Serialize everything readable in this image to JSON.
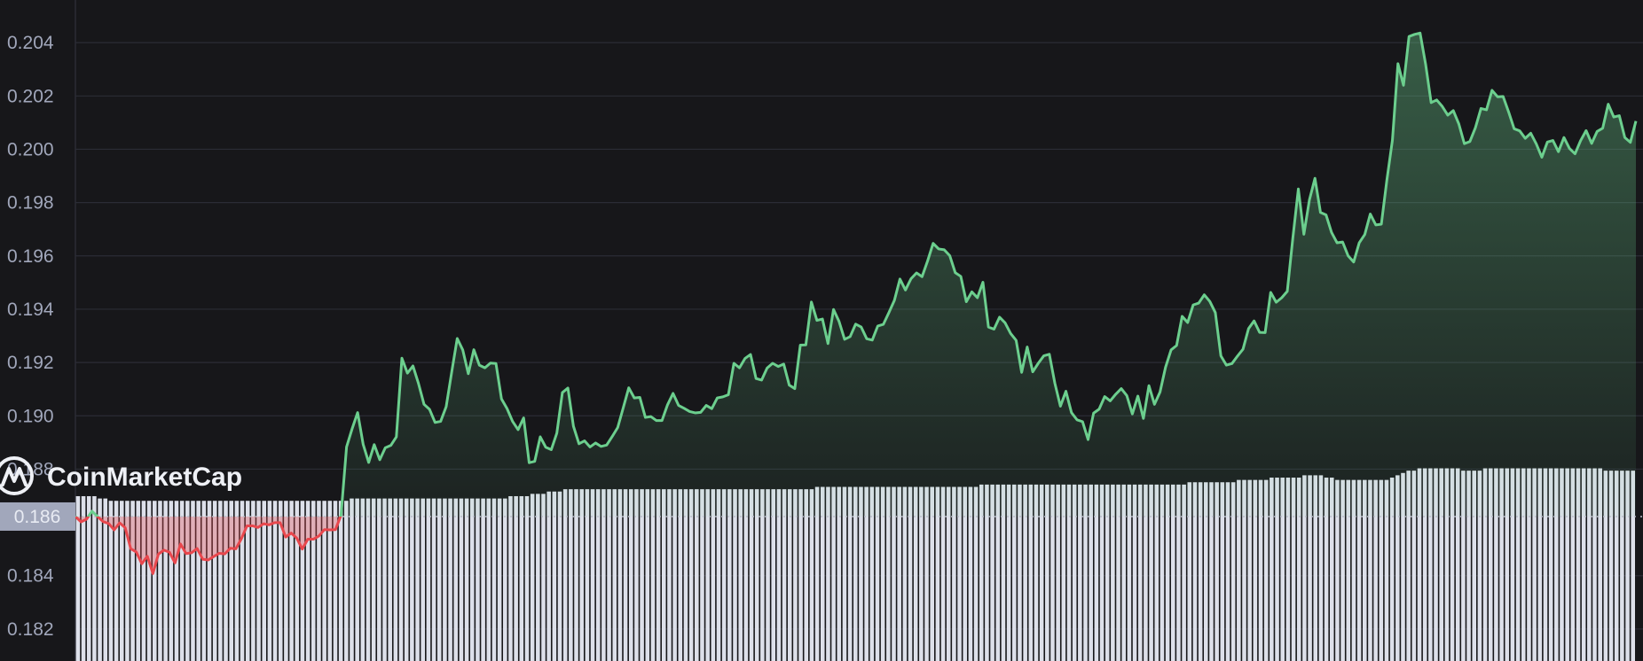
{
  "chart_data": {
    "type": "line",
    "y_ticks": [
      "0.182",
      "0.184",
      "0.186",
      "0.188",
      "0.190",
      "0.192",
      "0.194",
      "0.196",
      "0.198",
      "0.200",
      "0.202",
      "0.204"
    ],
    "ylim": [
      0.1808,
      0.2056
    ],
    "grid": true,
    "reference_price": 0.18622,
    "reference_label": "0.186",
    "watermark": "CoinMarketCap",
    "colors": {
      "background": "#17171a",
      "grid": "#2b2c35",
      "up": "#6ccf8e",
      "down": "#e8474d",
      "volume": "#dde0ea",
      "label_box": "#a1a7bb"
    },
    "price": [
      0.18622,
      0.18602,
      0.18612,
      0.18642,
      0.18622,
      0.18603,
      0.18596,
      0.18572,
      0.18598,
      0.1858,
      0.18501,
      0.18489,
      0.18445,
      0.18473,
      0.18408,
      0.18481,
      0.18496,
      0.18488,
      0.18448,
      0.18519,
      0.18483,
      0.18486,
      0.18502,
      0.18462,
      0.18459,
      0.18472,
      0.18484,
      0.18482,
      0.18503,
      0.18501,
      0.18539,
      0.18587,
      0.18587,
      0.18581,
      0.18595,
      0.18591,
      0.18599,
      0.18599,
      0.18545,
      0.1856,
      0.18541,
      0.185,
      0.18537,
      0.18537,
      0.18549,
      0.18573,
      0.18572,
      0.18573,
      0.18627,
      0.18883,
      0.18951,
      0.19012,
      0.18893,
      0.18825,
      0.18892,
      0.18835,
      0.1888,
      0.18889,
      0.18921,
      0.19216,
      0.1916,
      0.19187,
      0.19121,
      0.19043,
      0.19024,
      0.18975,
      0.18979,
      0.19034,
      0.19164,
      0.1929,
      0.19247,
      0.19158,
      0.19248,
      0.1919,
      0.1918,
      0.19198,
      0.19196,
      0.19063,
      0.19027,
      0.18979,
      0.18948,
      0.18992,
      0.18824,
      0.18829,
      0.18921,
      0.18882,
      0.18873,
      0.18935,
      0.19087,
      0.19104,
      0.18961,
      0.18895,
      0.18906,
      0.18883,
      0.18898,
      0.18885,
      0.1889,
      0.18922,
      0.18956,
      0.1903,
      0.19105,
      0.19067,
      0.19069,
      0.18994,
      0.18997,
      0.18982,
      0.18982,
      0.19041,
      0.19084,
      0.19039,
      0.19028,
      0.19016,
      0.19011,
      0.19013,
      0.19039,
      0.19027,
      0.19067,
      0.19071,
      0.19079,
      0.19197,
      0.1918,
      0.19215,
      0.1923,
      0.1914,
      0.19134,
      0.19179,
      0.19197,
      0.19185,
      0.19194,
      0.19115,
      0.19102,
      0.19265,
      0.19266,
      0.19427,
      0.19358,
      0.19363,
      0.19271,
      0.19399,
      0.19354,
      0.19287,
      0.19297,
      0.19344,
      0.19333,
      0.19289,
      0.19284,
      0.19337,
      0.19343,
      0.19387,
      0.19433,
      0.19513,
      0.19472,
      0.19514,
      0.19536,
      0.19522,
      0.19581,
      0.19647,
      0.19626,
      0.19623,
      0.19601,
      0.19537,
      0.19523,
      0.19428,
      0.19465,
      0.19443,
      0.19501,
      0.19333,
      0.19325,
      0.1937,
      0.19349,
      0.19309,
      0.19283,
      0.19163,
      0.19258,
      0.19165,
      0.19197,
      0.19225,
      0.19231,
      0.19122,
      0.19036,
      0.19092,
      0.19012,
      0.18985,
      0.18978,
      0.18911,
      0.1901,
      0.19025,
      0.19072,
      0.19056,
      0.19081,
      0.19102,
      0.19076,
      0.19007,
      0.19074,
      0.1899,
      0.19113,
      0.19043,
      0.19089,
      0.19182,
      0.19247,
      0.19264,
      0.19373,
      0.1935,
      0.19416,
      0.19423,
      0.19454,
      0.19429,
      0.19387,
      0.19225,
      0.1919,
      0.19196,
      0.19224,
      0.1925,
      0.19327,
      0.19356,
      0.19313,
      0.19312,
      0.19463,
      0.19426,
      0.19443,
      0.19467,
      0.19666,
      0.19851,
      0.19681,
      0.1981,
      0.19891,
      0.19763,
      0.19754,
      0.19688,
      0.19649,
      0.19652,
      0.196,
      0.19577,
      0.19649,
      0.1968,
      0.19757,
      0.19716,
      0.19719,
      0.19885,
      0.20034,
      0.20321,
      0.2024,
      0.20423,
      0.20431,
      0.20436,
      0.20319,
      0.20175,
      0.20185,
      0.20161,
      0.20128,
      0.20145,
      0.20095,
      0.20021,
      0.20029,
      0.20081,
      0.20153,
      0.20148,
      0.20221,
      0.20197,
      0.20198,
      0.2014,
      0.20077,
      0.20069,
      0.20041,
      0.2006,
      0.2002,
      0.1997,
      0.20027,
      0.20033,
      0.19991,
      0.20044,
      0.20003,
      0.19983,
      0.20032,
      0.2007,
      0.20022,
      0.20067,
      0.20079,
      0.20169,
      0.20121,
      0.20126,
      0.20044,
      0.20026,
      0.20106
    ],
    "volume": [
      0.71,
      0.71,
      0.71,
      0.71,
      0.7,
      0.7,
      0.69,
      0.69,
      0.69,
      0.69,
      0.69,
      0.69,
      0.69,
      0.69,
      0.69,
      0.69,
      0.69,
      0.69,
      0.69,
      0.69,
      0.69,
      0.69,
      0.69,
      0.69,
      0.69,
      0.69,
      0.69,
      0.69,
      0.69,
      0.69,
      0.69,
      0.69,
      0.69,
      0.69,
      0.69,
      0.69,
      0.69,
      0.69,
      0.69,
      0.69,
      0.69,
      0.69,
      0.69,
      0.69,
      0.69,
      0.69,
      0.69,
      0.69,
      0.69,
      0.69,
      0.7,
      0.7,
      0.7,
      0.7,
      0.7,
      0.7,
      0.7,
      0.7,
      0.7,
      0.7,
      0.7,
      0.7,
      0.7,
      0.7,
      0.7,
      0.7,
      0.7,
      0.7,
      0.7,
      0.7,
      0.7,
      0.7,
      0.7,
      0.7,
      0.7,
      0.7,
      0.7,
      0.7,
      0.7,
      0.71,
      0.71,
      0.71,
      0.71,
      0.72,
      0.72,
      0.72,
      0.73,
      0.73,
      0.73,
      0.74,
      0.74,
      0.74,
      0.74,
      0.74,
      0.74,
      0.74,
      0.74,
      0.74,
      0.74,
      0.74,
      0.74,
      0.74,
      0.74,
      0.74,
      0.74,
      0.74,
      0.74,
      0.74,
      0.74,
      0.74,
      0.74,
      0.74,
      0.74,
      0.74,
      0.74,
      0.74,
      0.74,
      0.74,
      0.74,
      0.74,
      0.74,
      0.74,
      0.74,
      0.74,
      0.74,
      0.74,
      0.74,
      0.74,
      0.74,
      0.74,
      0.74,
      0.74,
      0.74,
      0.74,
      0.74,
      0.75,
      0.75,
      0.75,
      0.75,
      0.75,
      0.75,
      0.75,
      0.75,
      0.75,
      0.75,
      0.75,
      0.75,
      0.75,
      0.75,
      0.75,
      0.75,
      0.75,
      0.75,
      0.75,
      0.75,
      0.75,
      0.75,
      0.75,
      0.75,
      0.75,
      0.75,
      0.75,
      0.75,
      0.75,
      0.75,
      0.76,
      0.76,
      0.76,
      0.76,
      0.76,
      0.76,
      0.76,
      0.76,
      0.76,
      0.76,
      0.76,
      0.76,
      0.76,
      0.76,
      0.76,
      0.76,
      0.76,
      0.76,
      0.76,
      0.76,
      0.76,
      0.76,
      0.76,
      0.76,
      0.76,
      0.76,
      0.76,
      0.76,
      0.76,
      0.76,
      0.76,
      0.76,
      0.76,
      0.76,
      0.76,
      0.76,
      0.76,
      0.76,
      0.77,
      0.77,
      0.77,
      0.77,
      0.77,
      0.77,
      0.77,
      0.77,
      0.77,
      0.78,
      0.78,
      0.78,
      0.78,
      0.78,
      0.78,
      0.79,
      0.79,
      0.79,
      0.79,
      0.79,
      0.79,
      0.8,
      0.8,
      0.8,
      0.8,
      0.79,
      0.79,
      0.78,
      0.78,
      0.78,
      0.78,
      0.78,
      0.78,
      0.78,
      0.78,
      0.78,
      0.78,
      0.79,
      0.8,
      0.81,
      0.82,
      0.82,
      0.83,
      0.83,
      0.83,
      0.83,
      0.83,
      0.83,
      0.83,
      0.83,
      0.82,
      0.82,
      0.82,
      0.82,
      0.83,
      0.83,
      0.83,
      0.83,
      0.83,
      0.83,
      0.83,
      0.83,
      0.83,
      0.83,
      0.83,
      0.83,
      0.83,
      0.83,
      0.83,
      0.83,
      0.83,
      0.83,
      0.83,
      0.83,
      0.83,
      0.83,
      0.82,
      0.82,
      0.82,
      0.82,
      0.82,
      0.82
    ]
  }
}
